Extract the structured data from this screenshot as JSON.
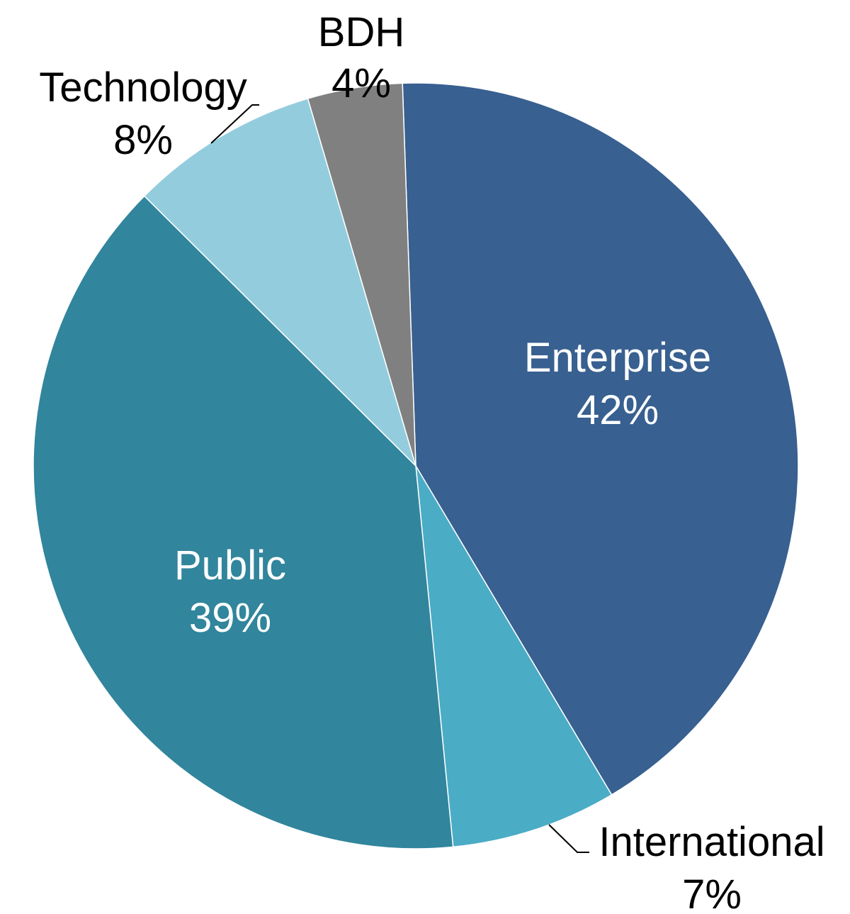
{
  "chart_data": {
    "type": "pie",
    "title": "",
    "slices": [
      {
        "label": "Enterprise",
        "value": 42,
        "value_label": "42%",
        "color": "#386090"
      },
      {
        "label": "International",
        "value": 7,
        "value_label": "7%",
        "color": "#4bacc6"
      },
      {
        "label": "Public",
        "value": 39,
        "value_label": "39%",
        "color": "#31859c"
      },
      {
        "label": "Technology",
        "value": 8,
        "value_label": "8%",
        "color": "#93cddd"
      },
      {
        "label": "BDH",
        "value": 4,
        "value_label": "4%",
        "color": "#808080"
      }
    ],
    "start_angle_deg": -2,
    "direction": "clockwise",
    "legend": "none",
    "data_labels": "category name and percentage"
  }
}
